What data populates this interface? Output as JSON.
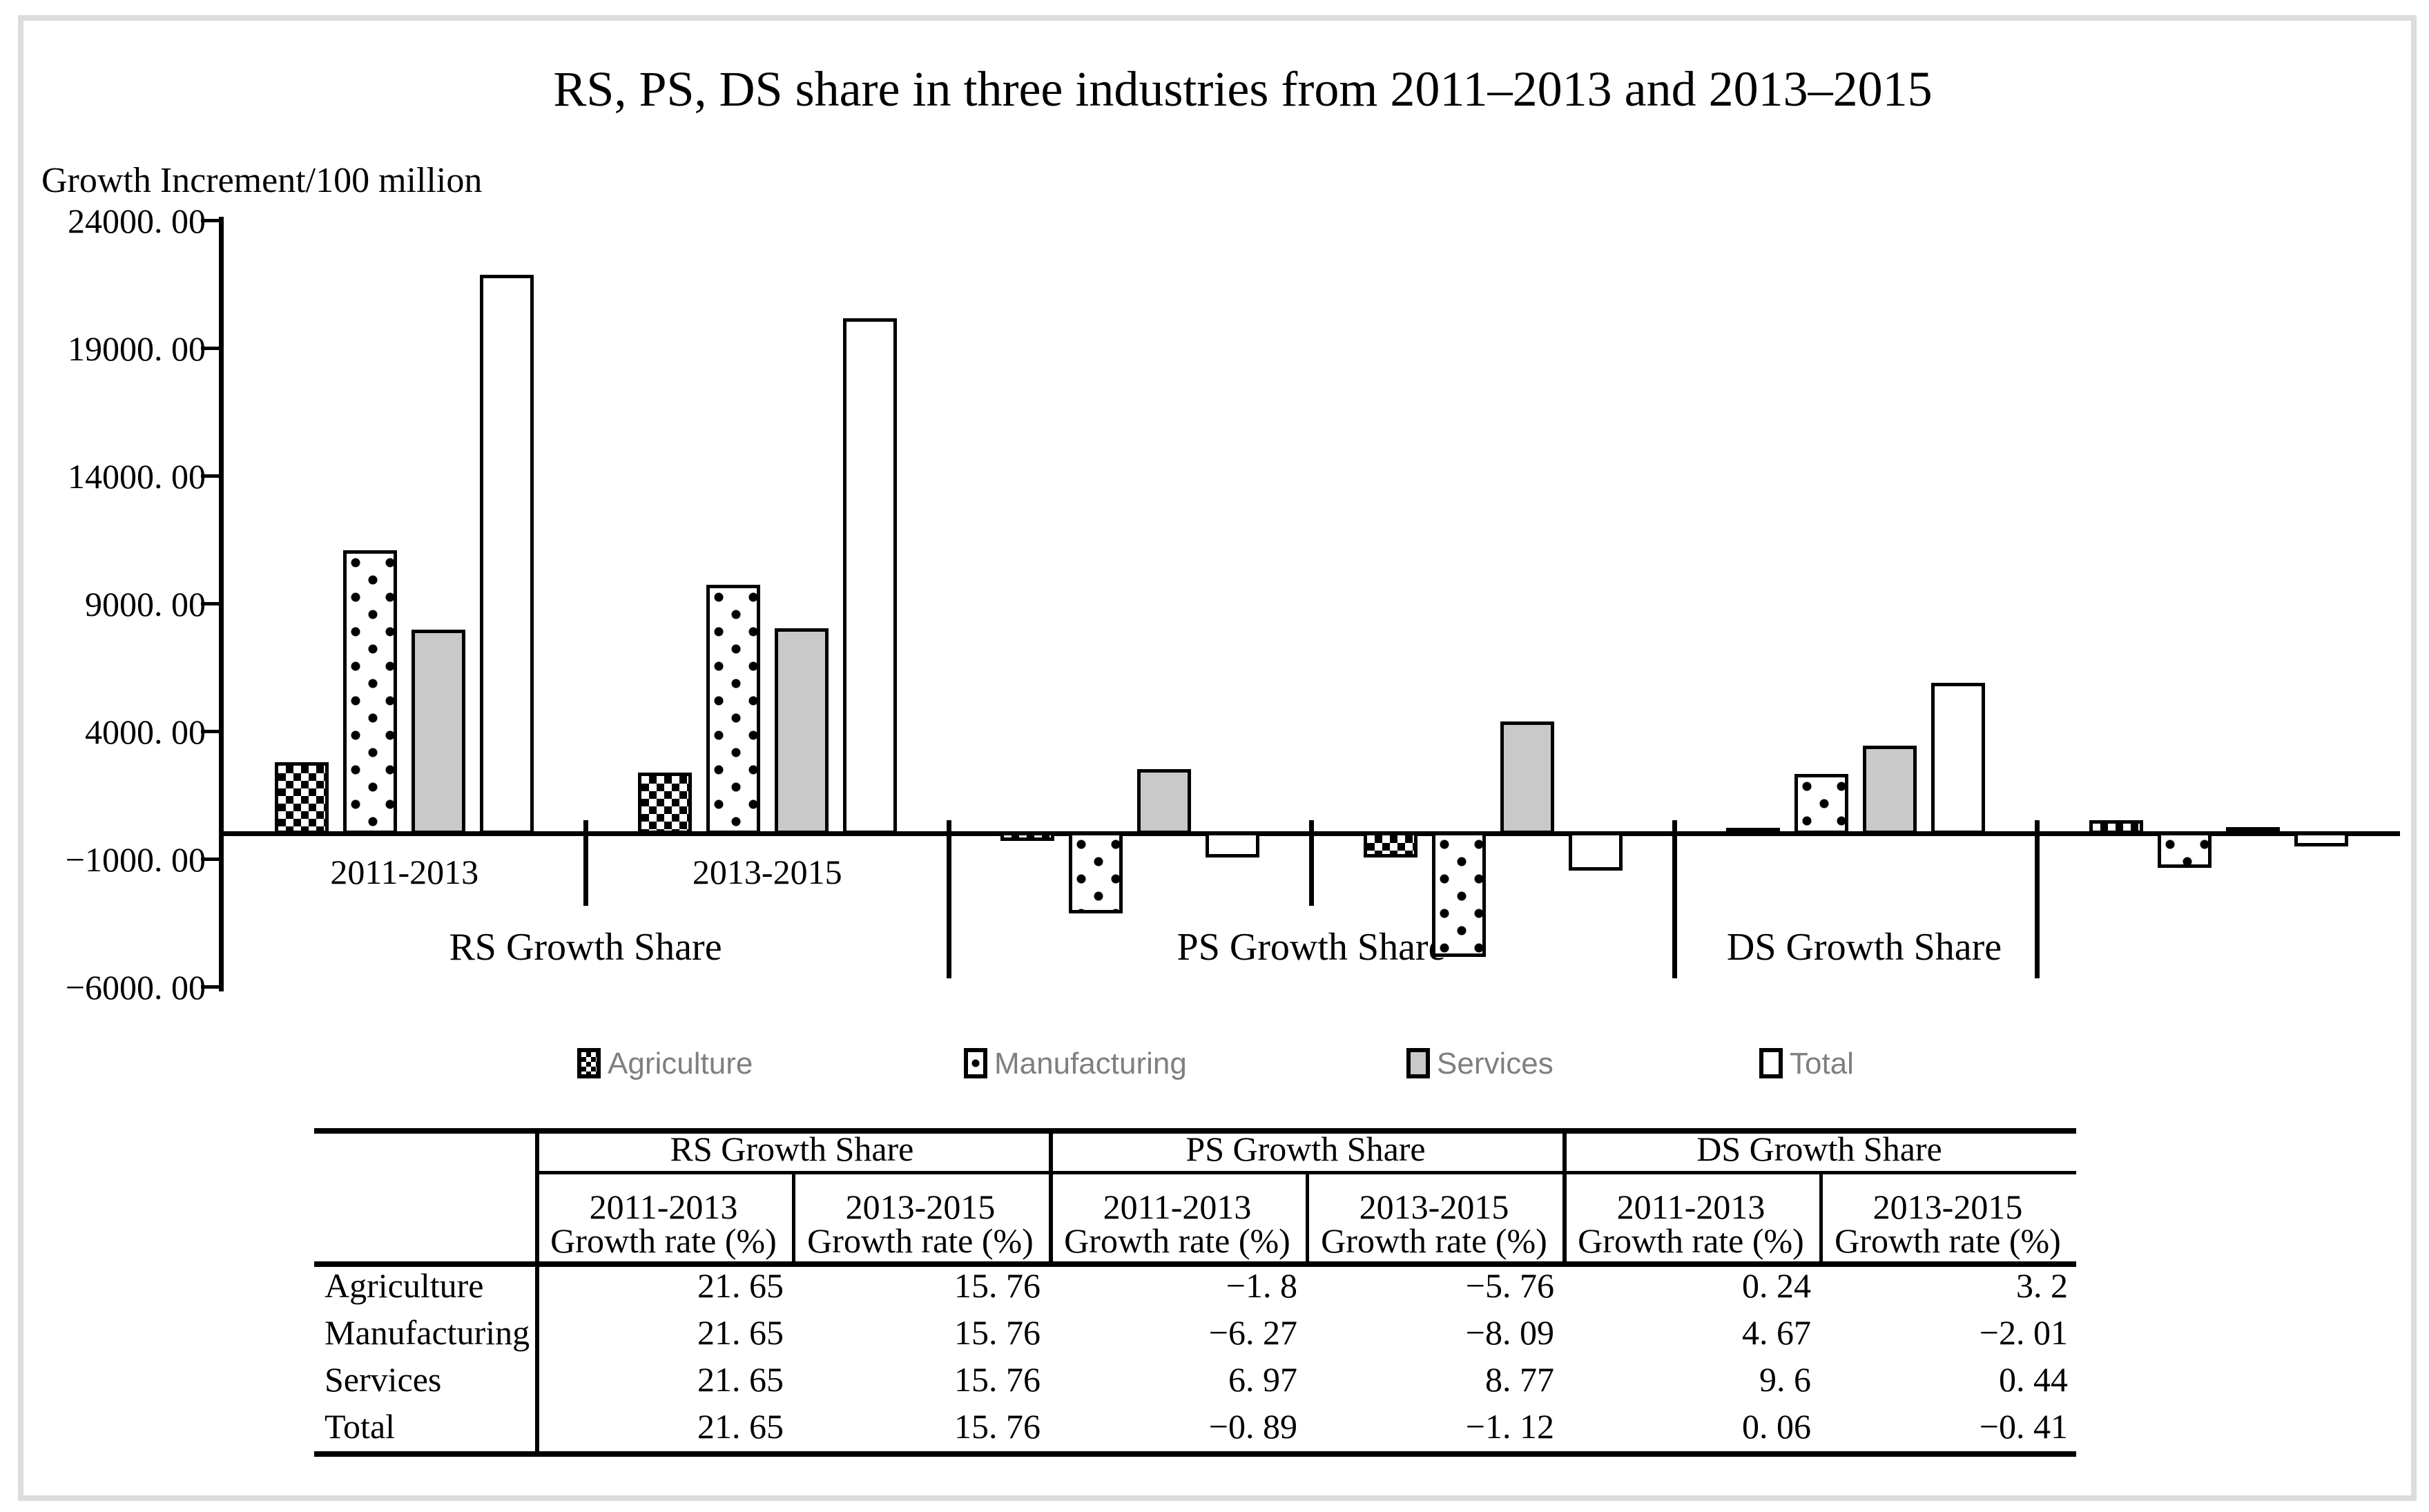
{
  "chart": {
    "title": "RS, PS, DS share in three industries from 2011–2013 and 2013–2015",
    "y_axis_label": "Growth Increment/100 million"
  },
  "chart_data": {
    "type": "bar",
    "title": "RS, PS, DS share in three industries from 2011–2013 and 2013–2015",
    "ylabel": "Growth Increment/100 million",
    "ylim": [
      -6000,
      24000
    ],
    "grid": false,
    "legend_position": "bottom",
    "yticks": [
      {
        "value": 24000,
        "label": "24000. 00"
      },
      {
        "value": 19000,
        "label": "19000. 00"
      },
      {
        "value": 14000,
        "label": "14000. 00"
      },
      {
        "value": 9000,
        "label": "9000. 00"
      },
      {
        "value": 4000,
        "label": "4000. 00"
      },
      {
        "value": -1000,
        "label": "−1000. 00"
      },
      {
        "value": -6000,
        "label": "−6000. 00"
      }
    ],
    "series": [
      "Agriculture",
      "Manufacturing",
      "Services",
      "Total"
    ],
    "groups": [
      {
        "section": "RS Growth Share",
        "period": "2011-2013",
        "show_period_label": true,
        "values": [
          2800,
          11100,
          8000,
          21900
        ]
      },
      {
        "section": "RS Growth Share",
        "period": "2013-2015",
        "show_period_label": true,
        "values": [
          2400,
          9750,
          8050,
          20200
        ]
      },
      {
        "section": "PS Growth Share",
        "period": "2011-2013",
        "show_period_label": false,
        "values": [
          -350,
          -3200,
          2550,
          -1000
        ]
      },
      {
        "section": "PS Growth Share",
        "period": "2013-2015",
        "show_period_label": false,
        "values": [
          -1000,
          -4900,
          4400,
          -1500
        ]
      },
      {
        "section": "DS Growth Share",
        "period": "2011-2013",
        "show_period_label": false,
        "values": [
          120,
          2350,
          3450,
          5920
        ]
      },
      {
        "section": "DS Growth Share",
        "period": "2013-2015",
        "show_period_label": false,
        "values": [
          550,
          -1400,
          270,
          -580
        ]
      }
    ],
    "section_labels": [
      "RS Growth Share",
      "PS Growth Share",
      "DS Growth Share"
    ],
    "legend": [
      {
        "label": "Agriculture",
        "pattern": "checker"
      },
      {
        "label": "Manufacturing",
        "pattern": "dots"
      },
      {
        "label": "Services",
        "pattern": "gray"
      },
      {
        "label": "Total",
        "pattern": "white"
      }
    ],
    "colors": {
      "bar_border": "#000000",
      "services_fill": "#c9c9c9",
      "legend_text": "#7f7f7f",
      "frame_gray": "#dcdcdc"
    }
  },
  "table": {
    "section_headers": [
      "RS Growth Share",
      "PS Growth Share",
      "DS Growth Share"
    ],
    "period_headers": [
      "2011-2013",
      "2013-2015",
      "2011-2013",
      "2013-2015",
      "2011-2013",
      "2013-2015"
    ],
    "rate_header": "Growth rate (%)",
    "rows": [
      {
        "label": "Agriculture",
        "values": [
          "21. 65",
          "15. 76",
          "−1. 8",
          "−5. 76",
          "0. 24",
          "3. 2"
        ]
      },
      {
        "label": "Manufacturing",
        "values": [
          "21. 65",
          "15. 76",
          "−6. 27",
          "−8. 09",
          "4. 67",
          "−2. 01"
        ]
      },
      {
        "label": "Services",
        "values": [
          "21. 65",
          "15. 76",
          "6. 97",
          "8. 77",
          "9. 6",
          "0. 44"
        ]
      },
      {
        "label": "Total",
        "values": [
          "21. 65",
          "15. 76",
          "−0. 89",
          "−1. 12",
          "0. 06",
          "−0. 41"
        ]
      }
    ]
  }
}
